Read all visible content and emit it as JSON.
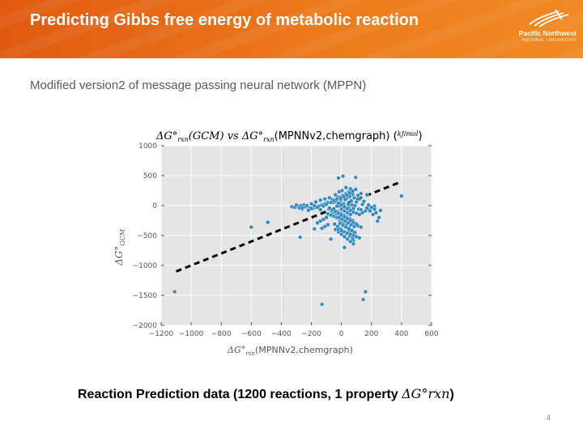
{
  "header": {
    "title": "Predicting Gibbs free energy of metabolic reaction",
    "logo_name": "Pacific Northwest",
    "logo_sub": "NATIONAL LABORATORY"
  },
  "subtitle": "Modified version2 of message passing neural network (MPPN)",
  "caption": {
    "text": "Reaction Prediction data (1200 reactions, 1 property ",
    "symbol": "ΔG°rxn",
    "close": ")"
  },
  "page_number": "4",
  "colors": {
    "header_orange": "#e8691a",
    "plot_background": "#e5e5e5",
    "point": "#348abd",
    "trend_line": "#000000"
  },
  "chart_data": {
    "type": "scatter",
    "title": "ΔG°rxn(GCM) vs ΔG°rxn(MPNNv2,chemgraph) (kJ/mol)",
    "title_parts": {
      "a": "ΔG°",
      "a_sub": "rxn",
      "b": "(GCM) vs ",
      "c": "ΔG°",
      "c_sub": "rxn",
      "d": "(MPNNv2,chemgraph) (",
      "unit_num": "kJ",
      "unit_den": "mol",
      "e": ")"
    },
    "xlabel": "ΔG°rxn(MPNNv2,chemgraph)",
    "xlabel_parts": {
      "a": "ΔG°",
      "a_sub": "rxn",
      "b": "(MPNNv2,chemgraph)"
    },
    "ylabel": "ΔG°GCM",
    "ylabel_parts": {
      "a": "ΔG°",
      "a_sub": "GCM"
    },
    "xlim": [
      -1200,
      600
    ],
    "ylim": [
      -2000,
      1000
    ],
    "xticks": [
      -1200,
      -1000,
      -800,
      -600,
      -400,
      -200,
      0,
      200,
      400,
      600
    ],
    "yticks": [
      -2000,
      -1500,
      -1000,
      -500,
      0,
      500,
      1000
    ],
    "xtick_labels": [
      "−1200",
      "−1000",
      "−800",
      "−600",
      "−400",
      "−200",
      "0",
      "200",
      "400",
      "600"
    ],
    "ytick_labels": [
      "−2000",
      "−1500",
      "−1000",
      "−500",
      "0",
      "500",
      "1000"
    ],
    "grid": true,
    "trend_line": {
      "style": "dashed",
      "x": [
        -1100,
        380
      ],
      "y": [
        -1100,
        380
      ]
    },
    "points": {
      "x": [
        -1110,
        -600,
        -490,
        -275,
        -130,
        145,
        160,
        -180,
        -70,
        20,
        80,
        170,
        400,
        260,
        250,
        240,
        -20,
        10,
        30,
        60,
        95,
        130,
        -40,
        -15,
        5,
        40,
        75,
        110,
        -25,
        35,
        55,
        85,
        120,
        -5,
        25,
        65,
        100,
        150,
        -50,
        -10,
        15,
        45,
        70,
        90,
        140,
        -30,
        0,
        20,
        50,
        80,
        115,
        130,
        -330,
        -310,
        -290,
        -270,
        -250,
        -230,
        -210,
        -190,
        -170,
        -150,
        -130,
        -110,
        -90,
        -70,
        -55,
        -300,
        -280,
        -260,
        -240,
        -220,
        -200,
        -180,
        -160,
        -140,
        -120,
        -100,
        -85,
        -65,
        -260,
        -230,
        -200,
        -170,
        -140,
        -110,
        -80,
        -60,
        -40,
        -20,
        0,
        20,
        40,
        60,
        80,
        100,
        120,
        140,
        160,
        180,
        200,
        220,
        -60,
        -40,
        -20,
        0,
        20,
        40,
        60,
        80,
        -50,
        -30,
        -10,
        10,
        30,
        50,
        70,
        90,
        -45,
        -25,
        -5,
        15,
        35,
        55,
        75,
        -40,
        -20,
        0,
        20,
        40,
        60,
        80,
        30,
        50,
        70,
        -90,
        -70,
        -50,
        -30,
        -10,
        10,
        30,
        50,
        70,
        90,
        110,
        130,
        -20,
        0,
        20,
        40,
        60,
        80,
        100,
        120,
        -10,
        10,
        30,
        50,
        70,
        90,
        -15,
        5,
        25,
        45,
        65,
        85,
        -25,
        -5,
        15,
        35,
        55,
        75,
        0,
        20,
        40,
        60,
        -80,
        -60,
        -40,
        -20,
        0,
        20,
        40,
        60,
        80,
        100,
        -70,
        -50,
        -30,
        -10,
        10,
        30,
        50,
        -5,
        15,
        35,
        55,
        75,
        95,
        200,
        220,
        190,
        230,
        210,
        180,
        170,
        -100,
        -120,
        -140,
        -160,
        -90,
        -110,
        -130
      ],
      "y": [
        -1440,
        -360,
        -280,
        -530,
        -1650,
        -1570,
        -1440,
        -390,
        -560,
        -700,
        -580,
        180,
        160,
        -80,
        -200,
        -260,
        460,
        490,
        300,
        280,
        470,
        200,
        180,
        230,
        250,
        210,
        190,
        170,
        140,
        120,
        150,
        130,
        110,
        90,
        100,
        80,
        60,
        70,
        50,
        40,
        30,
        20,
        10,
        0,
        20,
        -10,
        -20,
        -30,
        -40,
        -50,
        -60,
        -70,
        -20,
        -30,
        -10,
        0,
        10,
        -20,
        -40,
        -50,
        -30,
        -10,
        10,
        30,
        50,
        -80,
        -100,
        10,
        -40,
        -60,
        -20,
        -80,
        -50,
        0,
        -30,
        -70,
        -10,
        20,
        -60,
        -90,
        -40,
        0,
        30,
        60,
        90,
        110,
        130,
        100,
        70,
        40,
        10,
        -20,
        -50,
        -80,
        -110,
        -130,
        -150,
        -120,
        -90,
        -60,
        -30,
        -10,
        -140,
        -160,
        -180,
        -200,
        -220,
        -240,
        -260,
        -280,
        -170,
        -210,
        -250,
        -290,
        -330,
        -370,
        -410,
        -450,
        -310,
        -350,
        -390,
        -430,
        -470,
        -510,
        -550,
        -400,
        -440,
        -480,
        -520,
        -560,
        -600,
        -640,
        -360,
        -420,
        -480,
        -140,
        -160,
        -180,
        -200,
        -220,
        -240,
        -260,
        -280,
        -300,
        -320,
        -340,
        -360,
        -400,
        -420,
        -440,
        -460,
        -480,
        -500,
        -520,
        -540,
        -300,
        -330,
        -360,
        -390,
        -420,
        -450,
        -200,
        -230,
        -260,
        -290,
        -320,
        -350,
        -100,
        -130,
        -160,
        -190,
        -220,
        -250,
        -60,
        -90,
        -120,
        -150,
        -40,
        -70,
        -100,
        -130,
        -160,
        -190,
        -220,
        -250,
        -280,
        -310,
        50,
        80,
        110,
        140,
        170,
        200,
        230,
        120,
        150,
        180,
        210,
        240,
        270,
        -30,
        -60,
        -90,
        -120,
        -150,
        10,
        -40,
        -200,
        -230,
        -260,
        -290,
        -320,
        -350,
        -380
      ]
    }
  }
}
